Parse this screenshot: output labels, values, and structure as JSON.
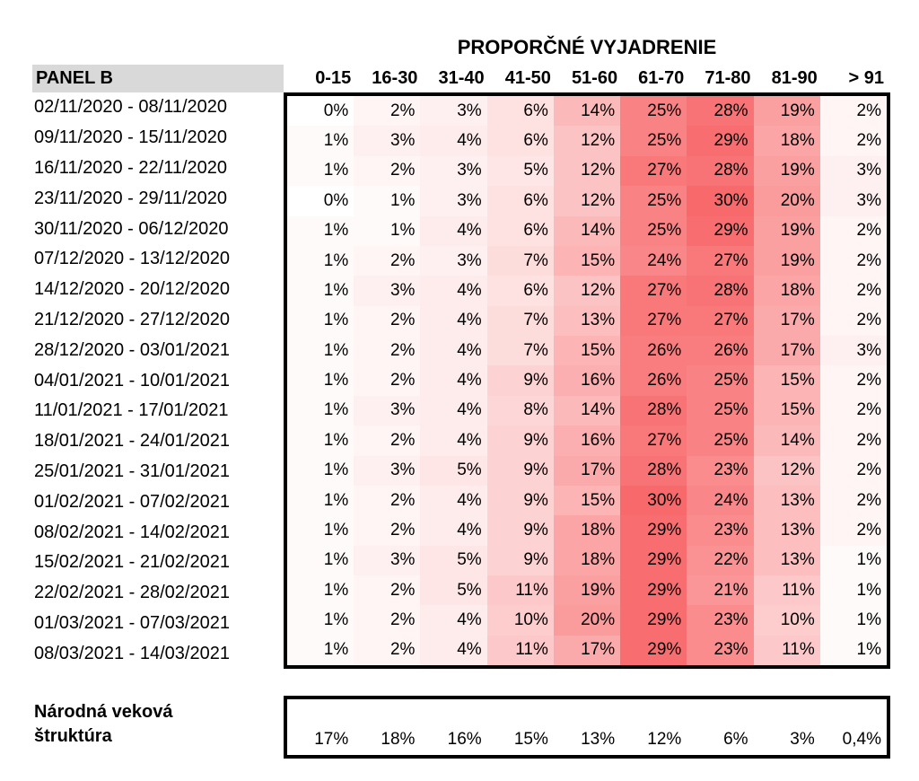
{
  "title": "PROPORČNÉ VYJADRENIE",
  "panel_label": "PANEL B",
  "national": {
    "label": "Národná veková štruktúra",
    "display_values": [
      "17%",
      "18%",
      "16%",
      "15%",
      "13%",
      "12%",
      "6%",
      "3%",
      "0,4%"
    ]
  },
  "colors": {
    "panel_header_bg": "#D9D9D9",
    "border": "#000000",
    "heat_min_color": "#FFFFFF",
    "heat_max_color": "#F8696B",
    "text": "#000000"
  },
  "chart_data": {
    "type": "heatmap",
    "title": "PROPORČNÉ VYJADRENIE",
    "x_categories": [
      "0-15",
      "16-30",
      "31-40",
      "41-50",
      "51-60",
      "61-70",
      "71-80",
      "81-90",
      "> 91"
    ],
    "y_categories": [
      "02/11/2020 - 08/11/2020",
      "09/11/2020 - 15/11/2020",
      "16/11/2020 - 22/11/2020",
      "23/11/2020 - 29/11/2020",
      "30/11/2020 - 06/12/2020",
      "07/12/2020 - 13/12/2020",
      "14/12/2020 - 20/12/2020",
      "21/12/2020 - 27/12/2020",
      "28/12/2020 - 03/01/2021",
      "04/01/2021 - 10/01/2021",
      "11/01/2021 - 17/01/2021",
      "18/01/2021 - 24/01/2021",
      "25/01/2021 - 31/01/2021",
      "01/02/2021 - 07/02/2021",
      "08/02/2021 - 14/02/2021",
      "15/02/2021 - 21/02/2021",
      "22/02/2021 - 28/02/2021",
      "01/03/2021 - 07/03/2021",
      "08/03/2021 - 14/03/2021"
    ],
    "values_unit": "%",
    "values": [
      [
        0,
        2,
        3,
        6,
        14,
        25,
        28,
        19,
        2
      ],
      [
        1,
        3,
        4,
        6,
        12,
        25,
        29,
        18,
        2
      ],
      [
        1,
        2,
        3,
        5,
        12,
        27,
        28,
        19,
        3
      ],
      [
        0,
        1,
        3,
        6,
        12,
        25,
        30,
        20,
        3
      ],
      [
        1,
        1,
        4,
        6,
        14,
        25,
        29,
        19,
        2
      ],
      [
        1,
        2,
        3,
        7,
        15,
        24,
        27,
        19,
        2
      ],
      [
        1,
        3,
        4,
        6,
        12,
        27,
        28,
        18,
        2
      ],
      [
        1,
        2,
        4,
        7,
        13,
        27,
        27,
        17,
        2
      ],
      [
        1,
        2,
        4,
        7,
        15,
        26,
        26,
        17,
        3
      ],
      [
        1,
        2,
        4,
        9,
        16,
        26,
        25,
        15,
        2
      ],
      [
        1,
        3,
        4,
        8,
        14,
        28,
        25,
        15,
        2
      ],
      [
        1,
        2,
        4,
        9,
        16,
        27,
        25,
        14,
        2
      ],
      [
        1,
        3,
        5,
        9,
        17,
        28,
        23,
        12,
        2
      ],
      [
        1,
        2,
        4,
        9,
        15,
        30,
        24,
        13,
        2
      ],
      [
        1,
        2,
        4,
        9,
        18,
        29,
        23,
        13,
        2
      ],
      [
        1,
        3,
        5,
        9,
        18,
        29,
        22,
        13,
        1
      ],
      [
        1,
        2,
        5,
        11,
        19,
        29,
        21,
        11,
        1
      ],
      [
        1,
        2,
        4,
        10,
        20,
        29,
        23,
        10,
        1
      ],
      [
        1,
        2,
        4,
        11,
        17,
        29,
        23,
        11,
        1
      ]
    ],
    "color_scale": {
      "min": 0,
      "max": 30,
      "min_color": "#FFFFFF",
      "max_color": "#F8696B"
    },
    "national_age_structure": {
      "label": "Národná veková štruktúra",
      "values": [
        17,
        18,
        16,
        15,
        13,
        12,
        6,
        3,
        0.4
      ]
    },
    "legend_position": "none",
    "grid": false
  }
}
